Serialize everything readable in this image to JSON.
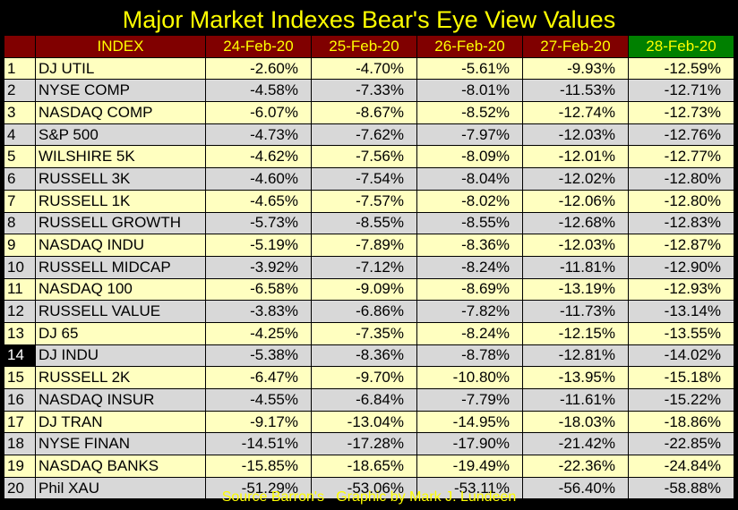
{
  "title": "Major Market Indexes Bear's Eye View Values",
  "source": "Source Barron's   Graphic by Mark J. Lundeen",
  "colors": {
    "header_bg": "#800000",
    "latest_header_bg": "#008000",
    "header_text": "#ffff00",
    "odd_row": "#ffffc0",
    "even_row": "#d8d8d8"
  },
  "chart_data": {
    "type": "table",
    "title": "Major Market Indexes Bear's Eye View Values",
    "columns": [
      "INDEX",
      "24-Feb-20",
      "25-Feb-20",
      "26-Feb-20",
      "27-Feb-20",
      "28-Feb-20"
    ],
    "rows": [
      {
        "rank": "1",
        "index": "DJ  UTIL",
        "values": [
          "-2.60%",
          "-4.70%",
          "-5.61%",
          "-9.93%",
          "-12.59%"
        ]
      },
      {
        "rank": "2",
        "index": "NYSE COMP",
        "values": [
          "-4.58%",
          "-7.33%",
          "-8.01%",
          "-11.53%",
          "-12.71%"
        ]
      },
      {
        "rank": "3",
        "index": "NASDAQ COMP",
        "values": [
          "-6.07%",
          "-8.67%",
          "-8.52%",
          "-12.74%",
          "-12.73%"
        ]
      },
      {
        "rank": "4",
        "index": "S&P 500",
        "values": [
          "-4.73%",
          "-7.62%",
          "-7.97%",
          "-12.03%",
          "-12.76%"
        ]
      },
      {
        "rank": "5",
        "index": "WILSHIRE 5K",
        "values": [
          "-4.62%",
          "-7.56%",
          "-8.09%",
          "-12.01%",
          "-12.77%"
        ]
      },
      {
        "rank": "6",
        "index": "RUSSELL 3K",
        "values": [
          "-4.60%",
          "-7.54%",
          "-8.04%",
          "-12.02%",
          "-12.80%"
        ]
      },
      {
        "rank": "7",
        "index": "RUSSELL 1K",
        "values": [
          "-4.65%",
          "-7.57%",
          "-8.02%",
          "-12.06%",
          "-12.80%"
        ]
      },
      {
        "rank": "8",
        "index": "RUSSELL GROWTH",
        "values": [
          "-5.73%",
          "-8.55%",
          "-8.55%",
          "-12.68%",
          "-12.83%"
        ]
      },
      {
        "rank": "9",
        "index": "NASDAQ INDU",
        "values": [
          "-5.19%",
          "-7.89%",
          "-8.36%",
          "-12.03%",
          "-12.87%"
        ]
      },
      {
        "rank": "10",
        "index": "RUSSELL MIDCAP",
        "values": [
          "-3.92%",
          "-7.12%",
          "-8.24%",
          "-11.81%",
          "-12.90%"
        ]
      },
      {
        "rank": "11",
        "index": "NASDAQ 100",
        "values": [
          "-6.58%",
          "-9.09%",
          "-8.69%",
          "-13.19%",
          "-12.93%"
        ]
      },
      {
        "rank": "12",
        "index": "RUSSELL VALUE",
        "values": [
          "-3.83%",
          "-6.86%",
          "-7.82%",
          "-11.73%",
          "-13.14%"
        ]
      },
      {
        "rank": "13",
        "index": "DJ  65",
        "values": [
          "-4.25%",
          "-7.35%",
          "-8.24%",
          "-12.15%",
          "-13.55%"
        ]
      },
      {
        "rank": "14",
        "index": "DJ  INDU",
        "values": [
          "-5.38%",
          "-8.36%",
          "-8.78%",
          "-12.81%",
          "-14.02%"
        ],
        "highlight": true
      },
      {
        "rank": "15",
        "index": "RUSSELL 2K",
        "values": [
          "-6.47%",
          "-9.70%",
          "-10.80%",
          "-13.95%",
          "-15.18%"
        ]
      },
      {
        "rank": "16",
        "index": "NASDAQ INSUR",
        "values": [
          "-4.55%",
          "-6.84%",
          "-7.79%",
          "-11.61%",
          "-15.22%"
        ]
      },
      {
        "rank": "17",
        "index": "DJ  TRAN",
        "values": [
          "-9.17%",
          "-13.04%",
          "-14.95%",
          "-18.03%",
          "-18.86%"
        ]
      },
      {
        "rank": "18",
        "index": "NYSE FINAN",
        "values": [
          "-14.51%",
          "-17.28%",
          "-17.90%",
          "-21.42%",
          "-22.85%"
        ]
      },
      {
        "rank": "19",
        "index": "NASDAQ BANKS",
        "values": [
          "-15.85%",
          "-18.65%",
          "-19.49%",
          "-22.36%",
          "-24.84%"
        ]
      },
      {
        "rank": "20",
        "index": "Phil XAU",
        "values": [
          "-51.29%",
          "-53.06%",
          "-53.11%",
          "-56.40%",
          "-58.88%"
        ]
      }
    ]
  }
}
